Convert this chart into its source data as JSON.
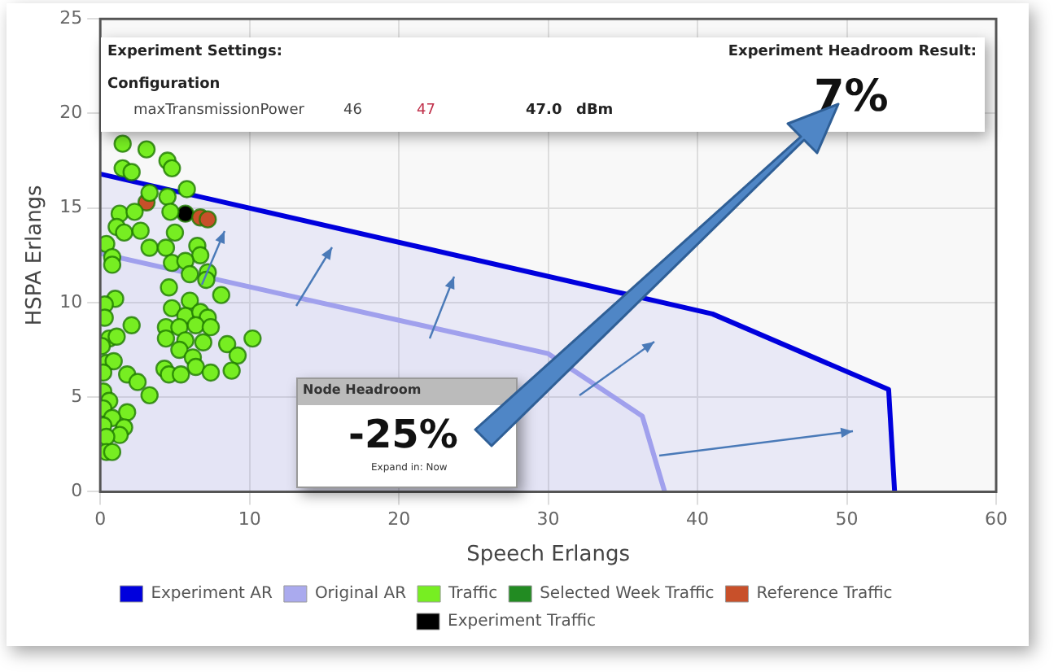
{
  "chart_data": {
    "type": "scatter",
    "xlabel": "Speech Erlangs",
    "ylabel": "HSPA Erlangs",
    "xlim": [
      0,
      60
    ],
    "xticks": [
      0,
      10,
      20,
      30,
      40,
      50,
      60
    ],
    "ylim": [
      0,
      25
    ],
    "yticks": [
      0,
      5,
      10,
      15,
      20,
      25
    ],
    "grid": true,
    "legend": "bottom",
    "annotations": [
      "Experiment Settings:",
      "Configuration",
      "maxTransmissionPower",
      "46",
      "47",
      "47.0",
      "dBm",
      "Experiment Headroom Result:",
      "7%",
      "Node Headroom",
      "-25%",
      "Expand in: Now"
    ],
    "series": [
      {
        "name": "Experiment AR",
        "type": "area",
        "marker": "none",
        "color": "#0000dd",
        "x": [
          0,
          41,
          52.8,
          53.2
        ],
        "values": [
          16.8,
          9.4,
          5.4,
          0
        ]
      },
      {
        "name": "Original AR",
        "type": "area",
        "marker": "none",
        "color": "#aaaaee",
        "x": [
          0,
          30,
          36.3,
          37.8
        ],
        "values": [
          12.6,
          7.3,
          4.0,
          0
        ]
      },
      {
        "name": "Traffic",
        "marker": "circle",
        "color": "#77ee22",
        "x": [
          1.5,
          3.1,
          1.5,
          2.1,
          4.5,
          4.8,
          5.8,
          3.3,
          4.5,
          1.3,
          2.3,
          4.7,
          1.1,
          1.6,
          2.7,
          0.4,
          0.8,
          0.8,
          3.3,
          4.4,
          5.0,
          6.5,
          6.7,
          4.8,
          5.7,
          7.2,
          6.0,
          7.1,
          4.6,
          8.1,
          1.0,
          0.3,
          6.0,
          4.8,
          0.3,
          5.7,
          6.7,
          7.2,
          2.1,
          4.4,
          5.3,
          6.4,
          7.4,
          4.4,
          5.7,
          6.9,
          10.2,
          8.5,
          0.6,
          1.1,
          0.1,
          5.3,
          6.2,
          9.2,
          0.4,
          0.9,
          6.4,
          4.3,
          7.4,
          8.8,
          4.6,
          5.4,
          0.2,
          1.8,
          2.5,
          3.3,
          0.2,
          0.6,
          0.2,
          1.8,
          0.8,
          0.2,
          1.6,
          1.3,
          0.4,
          0.4,
          0.8
        ],
        "values": [
          18.4,
          18.1,
          17.1,
          16.9,
          17.5,
          17.1,
          16.0,
          15.8,
          15.6,
          14.7,
          14.8,
          14.8,
          14.0,
          13.7,
          13.8,
          13.1,
          12.4,
          12.0,
          12.9,
          12.9,
          13.7,
          13.0,
          12.5,
          12.1,
          12.2,
          11.6,
          11.5,
          11.2,
          10.8,
          10.4,
          10.2,
          9.9,
          10.1,
          9.7,
          9.2,
          9.3,
          9.5,
          9.2,
          8.8,
          8.7,
          8.7,
          8.8,
          8.7,
          8.1,
          8.0,
          7.9,
          8.1,
          7.8,
          8.1,
          8.2,
          7.7,
          7.5,
          7.1,
          7.2,
          6.8,
          6.9,
          6.6,
          6.5,
          6.3,
          6.4,
          6.2,
          6.2,
          6.3,
          6.2,
          5.8,
          5.1,
          5.3,
          4.8,
          4.4,
          4.2,
          3.9,
          3.5,
          3.4,
          3.0,
          2.9,
          2.1,
          2.1
        ]
      },
      {
        "name": "Selected Week Traffic",
        "marker": "circle",
        "color": "#228b22"
      },
      {
        "name": "Reference Traffic",
        "marker": "circle",
        "color": "#c8502a",
        "x": [
          3.1,
          6.7,
          7.2
        ],
        "values": [
          15.3,
          14.5,
          14.4
        ]
      },
      {
        "name": "Experiment Traffic",
        "marker": "circle",
        "color": "#000000",
        "x": [
          5.7
        ],
        "values": [
          14.7
        ]
      }
    ]
  }
}
